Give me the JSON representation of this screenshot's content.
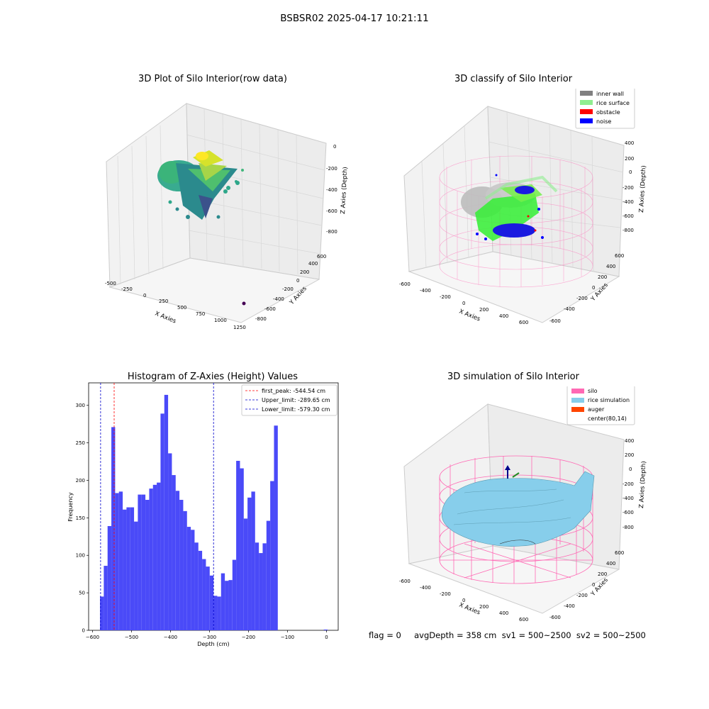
{
  "figure": {
    "suptitle": "BSBSR02 2025-04-17 10:21:11",
    "status_line": "flag = 0     avgDepth = 358 cm  sv1 = 500~2500  sv2 = 500~2500"
  },
  "panels": {
    "raw": {
      "title": "3D Plot of Silo Interior(row data)",
      "xlabel": "X Axies",
      "ylabel": "Y Axies",
      "zlabel": "Z Axies (Depth)",
      "xticks": [
        "-500",
        "-250",
        "0",
        "250",
        "500",
        "750",
        "1000",
        "1250"
      ],
      "yticks": [
        "-800",
        "-600",
        "-400",
        "-200",
        "0",
        "200",
        "400",
        "600"
      ],
      "zticks": [
        "0",
        "-200",
        "-400",
        "-600",
        "-800"
      ],
      "colors": {
        "cloud_low": "#3b528b",
        "cloud_mid": "#21918c",
        "cloud_high": "#fde725",
        "outlier": "#440154"
      }
    },
    "classify": {
      "title": "3D classify of Silo Interior",
      "xlabel": "X Axies",
      "ylabel": "Y Axies",
      "zlabel": "Z Axies (Depth)",
      "xticks": [
        "-600",
        "-400",
        "-200",
        "0",
        "200",
        "400",
        "600"
      ],
      "yticks": [
        "-600",
        "-400",
        "-200",
        "0",
        "200",
        "400",
        "600"
      ],
      "zticks": [
        "400",
        "200",
        "0",
        "-200",
        "-400",
        "-600",
        "-800"
      ],
      "legend": [
        {
          "label": "inner wall",
          "color": "#808080"
        },
        {
          "label": "rice surface",
          "color": "#90ee90"
        },
        {
          "label": "obstacle",
          "color": "#ff0000"
        },
        {
          "label": "noise",
          "color": "#0000ff"
        }
      ],
      "colors": {
        "silo_wire": "#ff69b4"
      }
    },
    "simulation": {
      "title": "3D simulation of Silo Interior",
      "xlabel": "X Axies",
      "ylabel": "Y Axies",
      "zlabel": "Z Axies (Depth)",
      "xticks": [
        "-600",
        "-400",
        "-200",
        "0",
        "200",
        "400",
        "600"
      ],
      "yticks": [
        "-600",
        "-400",
        "-200",
        "0",
        "200",
        "400",
        "600"
      ],
      "zticks": [
        "400",
        "200",
        "0",
        "-200",
        "-400",
        "-600",
        "-800"
      ],
      "legend": [
        {
          "label": "silo",
          "color": "#ff69b4"
        },
        {
          "label": "rice simulation",
          "color": "#87ceeb"
        },
        {
          "label": "auger",
          "color": "#ff4500"
        },
        {
          "label": "center(80,14)",
          "color": "#ffffff"
        }
      ]
    }
  },
  "chart_data": {
    "type": "bar",
    "title": "Histogram of Z-Axies (Height) Values",
    "xlabel": "Depth (cm)",
    "ylabel": "Frequency",
    "xlim": [
      -610,
      30
    ],
    "ylim": [
      0,
      330
    ],
    "xticks": [
      -600,
      -500,
      -400,
      -300,
      -200,
      -100,
      0
    ],
    "yticks": [
      0,
      50,
      100,
      150,
      200,
      250,
      300
    ],
    "bin_width": 9.7,
    "bar_color": "#4a4af8",
    "bins": [
      {
        "x": -580.8,
        "y": 45
      },
      {
        "x": -571.1,
        "y": 86
      },
      {
        "x": -561.4,
        "y": 139
      },
      {
        "x": -551.7,
        "y": 271
      },
      {
        "x": -542.0,
        "y": 183
      },
      {
        "x": -532.3,
        "y": 185
      },
      {
        "x": -522.6,
        "y": 161
      },
      {
        "x": -512.9,
        "y": 164
      },
      {
        "x": -503.2,
        "y": 164
      },
      {
        "x": -493.5,
        "y": 145
      },
      {
        "x": -483.8,
        "y": 181
      },
      {
        "x": -474.1,
        "y": 181
      },
      {
        "x": -464.4,
        "y": 174
      },
      {
        "x": -454.7,
        "y": 189
      },
      {
        "x": -445.0,
        "y": 194
      },
      {
        "x": -435.3,
        "y": 197
      },
      {
        "x": -425.6,
        "y": 289
      },
      {
        "x": -415.9,
        "y": 314
      },
      {
        "x": -406.2,
        "y": 236
      },
      {
        "x": -396.5,
        "y": 207
      },
      {
        "x": -386.8,
        "y": 186
      },
      {
        "x": -377.1,
        "y": 174
      },
      {
        "x": -367.4,
        "y": 159
      },
      {
        "x": -357.7,
        "y": 138
      },
      {
        "x": -348.0,
        "y": 134
      },
      {
        "x": -338.3,
        "y": 117
      },
      {
        "x": -328.6,
        "y": 106
      },
      {
        "x": -318.9,
        "y": 95
      },
      {
        "x": -309.2,
        "y": 85
      },
      {
        "x": -299.5,
        "y": 73
      },
      {
        "x": -289.8,
        "y": 46
      },
      {
        "x": -280.1,
        "y": 45
      },
      {
        "x": -270.4,
        "y": 76
      },
      {
        "x": -260.7,
        "y": 66
      },
      {
        "x": -251.0,
        "y": 67
      },
      {
        "x": -241.3,
        "y": 94
      },
      {
        "x": -231.6,
        "y": 226
      },
      {
        "x": -221.9,
        "y": 216
      },
      {
        "x": -212.2,
        "y": 149
      },
      {
        "x": -202.5,
        "y": 177
      },
      {
        "x": -192.8,
        "y": 185
      },
      {
        "x": -183.1,
        "y": 117
      },
      {
        "x": -173.4,
        "y": 103
      },
      {
        "x": -163.7,
        "y": 116
      },
      {
        "x": -154.0,
        "y": 146
      },
      {
        "x": -144.3,
        "y": 199
      },
      {
        "x": -134.6,
        "y": 273
      },
      {
        "x": -7.0,
        "y": 1
      }
    ],
    "lines": [
      {
        "label": "first_peak: -544.54 cm",
        "x": -544.54,
        "color": "#ff0000"
      },
      {
        "label": "Upper_limit: -289.65 cm",
        "x": -289.65,
        "color": "#0000cc"
      },
      {
        "label": "Lower_limit: -579.30 cm",
        "x": -579.3,
        "color": "#0000cc"
      }
    ]
  }
}
